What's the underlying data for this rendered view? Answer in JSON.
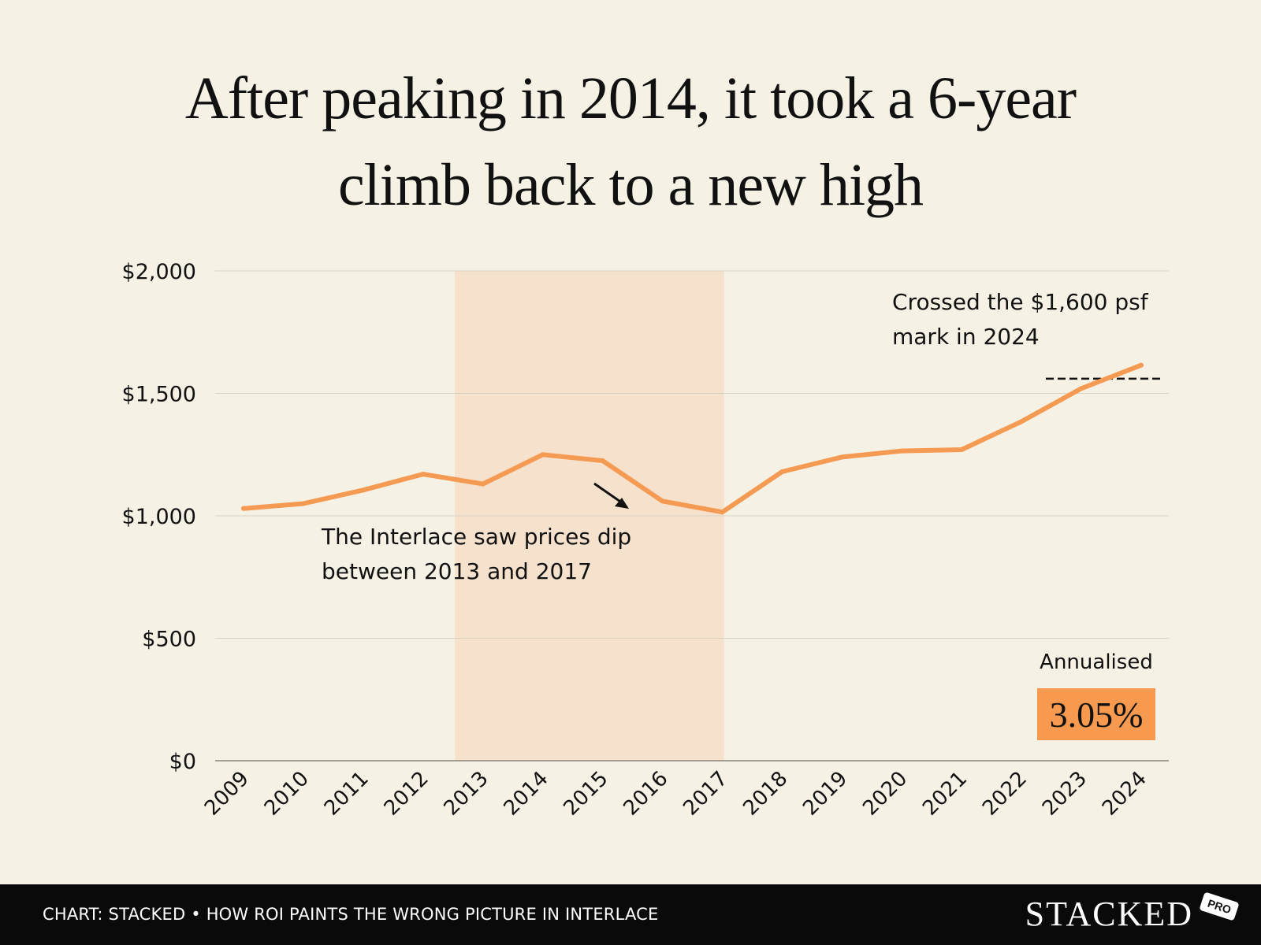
{
  "title": {
    "line1": "After peaking in 2014, it took a 6-year",
    "line2": "climb back to a new high"
  },
  "annotations": {
    "dip_line1": "The Interlace saw prices dip",
    "dip_line2": "between 2013 and 2017",
    "cross_line1": "Crossed the $1,600 psf",
    "cross_line2": "mark in 2024",
    "annualised_label": "Annualised",
    "annualised_value": "3.05%"
  },
  "footer": {
    "caption": "CHART: STACKED • HOW ROI PAINTS THE WRONG PICTURE IN INTERLACE",
    "logo": "STACKED",
    "badge": "PRO"
  },
  "colors": {
    "line": "#f59a52",
    "highlight_band": "#f6e2cc",
    "gridline": "#d9d3c6",
    "axis": "#8a857c",
    "annualised_box": "#f79a50",
    "background": "#f6f1e5"
  },
  "chart_data": {
    "type": "line",
    "x": [
      "2009",
      "2010",
      "2011",
      "2012",
      "2013",
      "2014",
      "2015",
      "2016",
      "2017",
      "2018",
      "2019",
      "2020",
      "2021",
      "2022",
      "2023",
      "2024"
    ],
    "series": [
      {
        "values": [
          1030,
          1050,
          1105,
          1170,
          1130,
          1250,
          1225,
          1060,
          1015,
          1180,
          1240,
          1265,
          1270,
          1385,
          1520,
          1615
        ]
      }
    ],
    "ylim": [
      0,
      2000
    ],
    "y_ticks": [
      0,
      500,
      1000,
      1500,
      2000
    ],
    "y_tick_labels": [
      "$0",
      "$500",
      "$1,000",
      "$1,500",
      "$2,000"
    ],
    "highlight_range": [
      "2013",
      "2017"
    ],
    "reference_line_value": 1560,
    "grid": true
  }
}
